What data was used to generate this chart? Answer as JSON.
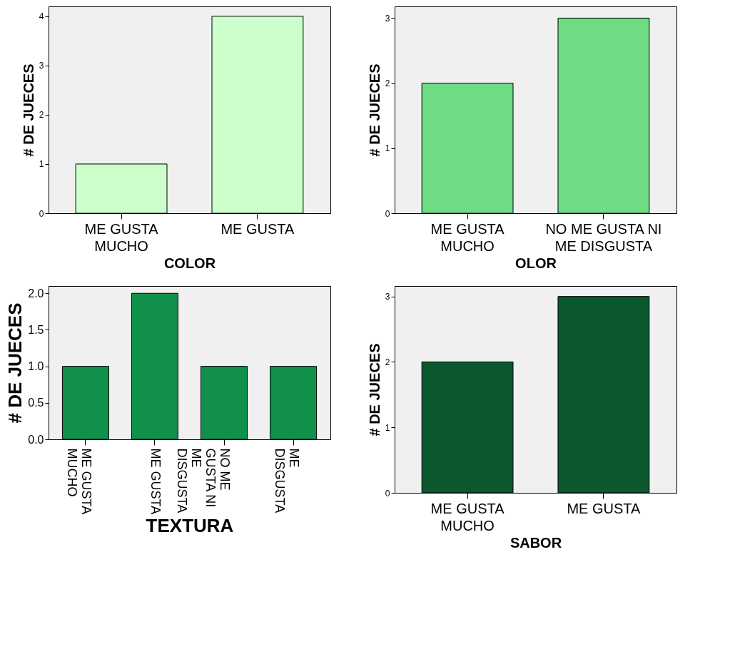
{
  "chart_data": [
    {
      "type": "bar",
      "xlabel": "COLOR",
      "ylabel": "# DE JUECES",
      "categories": [
        "ME GUSTA\nMUCHO",
        "ME GUSTA"
      ],
      "values": [
        1,
        4
      ],
      "color": "#ccffcc",
      "ylim": [
        0,
        4.2
      ],
      "yticks": [
        0,
        1,
        2,
        3,
        4
      ],
      "grid": false
    },
    {
      "type": "bar",
      "xlabel": "OLOR",
      "ylabel": "# DE JUECES",
      "categories": [
        "ME GUSTA\nMUCHO",
        "NO ME GUSTA NI\nME DISGUSTA"
      ],
      "values": [
        2,
        3
      ],
      "color": "#6fdb84",
      "ylim": [
        0,
        3.18
      ],
      "yticks": [
        0,
        1,
        2,
        3
      ],
      "grid": false
    },
    {
      "type": "bar",
      "xlabel": "TEXTURA",
      "ylabel": "# DE JUECES",
      "categories": [
        "ME GUSTA\nMUCHO",
        "ME GUSTA",
        "NO ME\nGUSTA NI\nME\nDISGUSTA",
        "ME\nDISGUSTA"
      ],
      "values": [
        1,
        2,
        1,
        1
      ],
      "color": "#10904a",
      "ylim": [
        0,
        2.1
      ],
      "yticks": [
        {
          "value": 0,
          "label": "0.0"
        },
        {
          "value": 0.5,
          "label": "0.5"
        },
        {
          "value": 1,
          "label": "1.0"
        },
        {
          "value": 1.5,
          "label": "1.5"
        },
        {
          "value": 2,
          "label": "2.0"
        }
      ],
      "grid": false
    },
    {
      "type": "bar",
      "xlabel": "SABOR",
      "ylabel": "# DE JUECES",
      "categories": [
        "ME GUSTA\nMUCHO",
        "ME GUSTA"
      ],
      "values": [
        2,
        3
      ],
      "color": "#0b582e",
      "ylim": [
        0,
        3.16
      ],
      "yticks": [
        0,
        1,
        2,
        3
      ],
      "grid": false
    }
  ]
}
